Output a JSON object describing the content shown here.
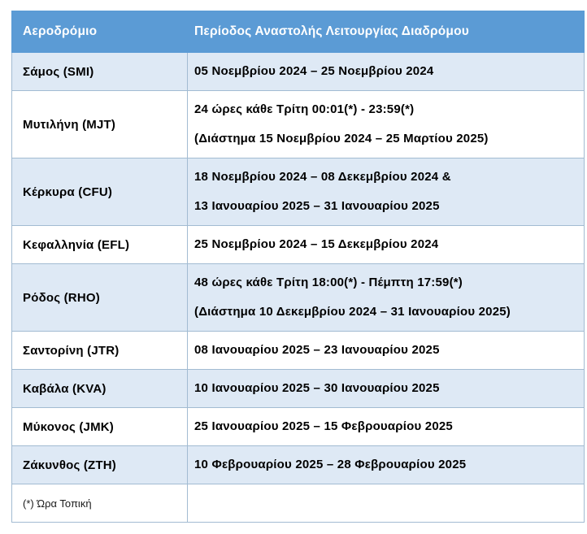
{
  "colors": {
    "header_bg": "#5B9BD5",
    "header_text": "#FFFFFF",
    "row_shaded_bg": "#DEE9F5",
    "row_plain_bg": "#FFFFFF",
    "border": "#A2BBD2",
    "body_text": "#000000"
  },
  "table": {
    "headers": {
      "airport": "Αεροδρόμιο",
      "period": "Περίοδος Αναστολής Λειτουργίας Διαδρόμου"
    },
    "rows": [
      {
        "airport": "Σάμος (SMI)",
        "period_lines": [
          "05 Νοεμβρίου 2024 – 25 Νοεμβρίου 2024"
        ]
      },
      {
        "airport": "Μυτιλήνη (MJT)",
        "period_lines": [
          "24 ώρες κάθε Τρίτη 00:01(*) - 23:59(*)",
          "(Διάστημα 15 Νοεμβρίου 2024 – 25 Μαρτίου 2025)"
        ]
      },
      {
        "airport": "Κέρκυρα (CFU)",
        "period_lines": [
          "18 Νοεμβρίου 2024 – 08 Δεκεμβρίου 2024 &",
          "13 Ιανουαρίου 2025 – 31 Ιανουαρίου 2025"
        ]
      },
      {
        "airport": "Κεφαλληνία (EFL)",
        "period_lines": [
          "25 Νοεμβρίου 2024 – 15 Δεκεμβρίου 2024"
        ]
      },
      {
        "airport": "Ρόδος (RHO)",
        "period_lines": [
          "48 ώρες κάθε Τρίτη 18:00(*) - Πέμπτη 17:59(*)",
          "(Διάστημα 10 Δεκεμβρίου 2024 – 31 Ιανουαρίου 2025)"
        ]
      },
      {
        "airport": "Σαντορίνη (JTR)",
        "period_lines": [
          "08 Ιανουαρίου 2025 – 23 Ιανουαρίου 2025"
        ]
      },
      {
        "airport": "Καβάλα (KVA)",
        "period_lines": [
          "10 Ιανουαρίου 2025 – 30 Ιανουαρίου 2025"
        ]
      },
      {
        "airport": "Μύκονος (JMK)",
        "period_lines": [
          "25 Ιανουαρίου 2025 – 15 Φεβρουαρίου 2025"
        ]
      },
      {
        "airport": "Ζάκυνθος (ZTH)",
        "period_lines": [
          "10 Φεβρουαρίου 2025 – 28 Φεβρουαρίου 2025"
        ]
      }
    ],
    "footnote": "(*) Ώρα Τοπική"
  }
}
